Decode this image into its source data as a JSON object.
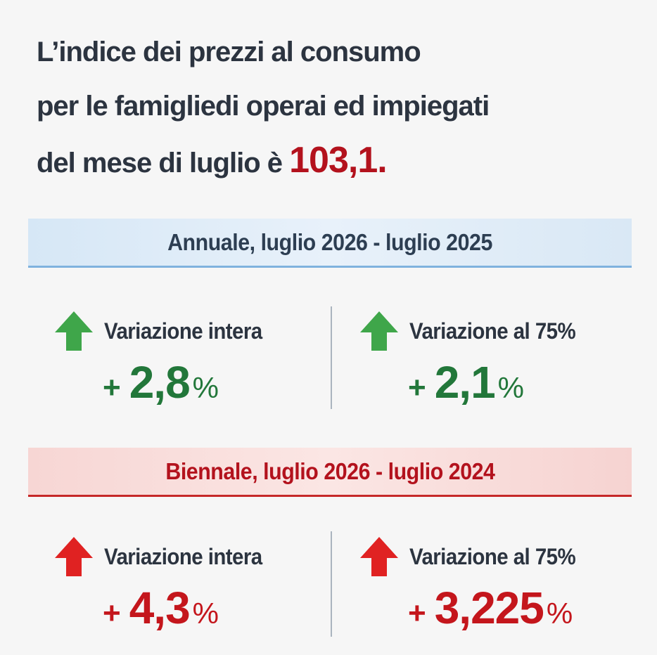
{
  "headline": {
    "line1": "L’indice dei prezzi al consumo",
    "line2": "per le famigliedi operai ed impiegati",
    "line3_prefix": "del mese di luglio è ",
    "value": "103,1."
  },
  "annual": {
    "title": "Annuale, luglio 2026 - luglio 2025",
    "color": "#22773a",
    "stats": [
      {
        "label": "Variazione intera",
        "sign": "+",
        "value": "2,8",
        "unit": "%",
        "direction": "up"
      },
      {
        "label": "Variazione al 75%",
        "sign": "+",
        "value": "2,1",
        "unit": "%",
        "direction": "up"
      }
    ]
  },
  "biennial": {
    "title": "Biennale, luglio 2026 - luglio 2024",
    "color": "#c4161c",
    "stats": [
      {
        "label": "Variazione intera",
        "sign": "+",
        "value": "4,3",
        "unit": "%",
        "direction": "up"
      },
      {
        "label": "Variazione al 75%",
        "sign": "+",
        "value": "3,225",
        "unit": "%",
        "direction": "up"
      }
    ]
  },
  "icons": {
    "up_arrow": "arrow-up-icon"
  }
}
